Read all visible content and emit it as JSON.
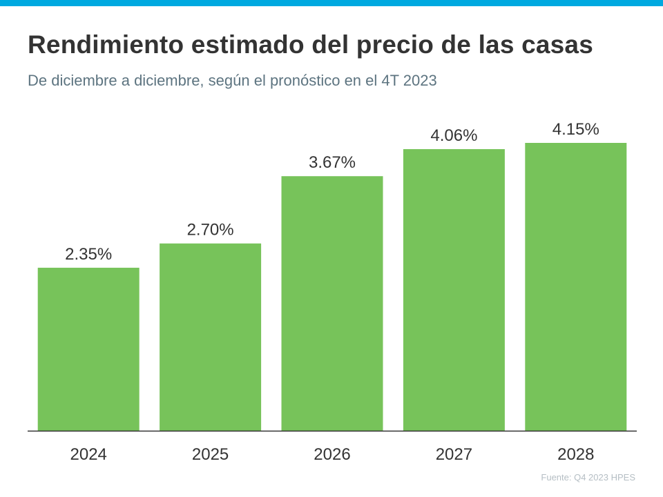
{
  "accent_color": "#00a9e0",
  "title": "Rendimiento estimado del precio de las casas",
  "subtitle": "De diciembre a diciembre, según el pronóstico en el 4T 2023",
  "source": "Fuente:  Q4 2023 HPES",
  "chart_data": {
    "type": "bar",
    "categories": [
      "2024",
      "2025",
      "2026",
      "2027",
      "2028"
    ],
    "values": [
      2.35,
      2.7,
      3.67,
      4.06,
      4.15
    ],
    "value_labels": [
      "2.35%",
      "2.70%",
      "3.67%",
      "4.06%",
      "4.15%"
    ],
    "bar_color": "#77c35a",
    "ylim": [
      0,
      4.15
    ],
    "grid": false,
    "legend": "none"
  }
}
